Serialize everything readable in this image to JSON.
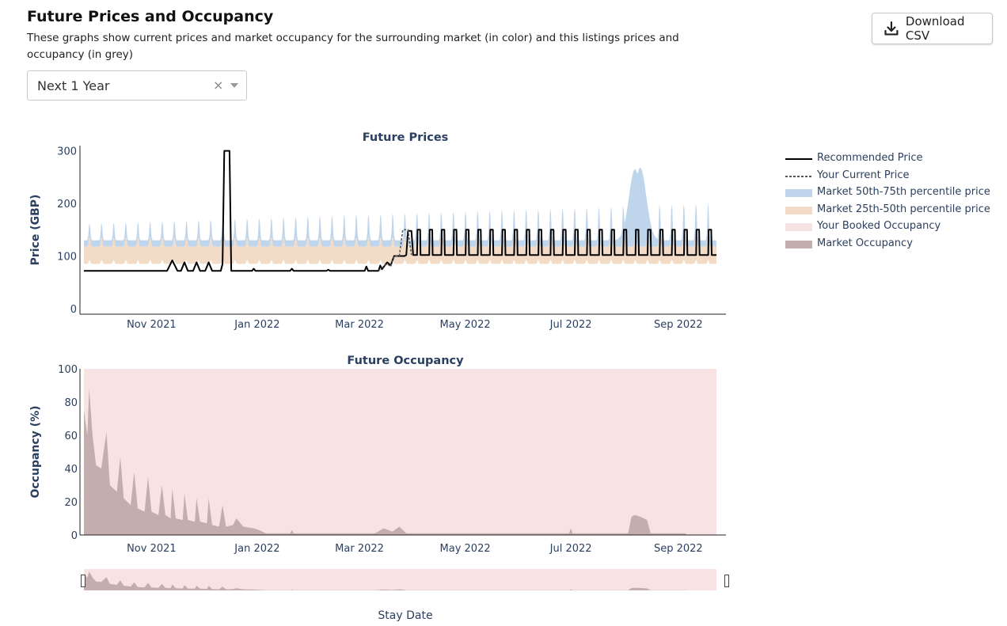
{
  "page": {
    "title": "Future Prices and Occupancy",
    "description": "These graphs show current prices and market occupancy for the surrounding market (in color) and this listings prices and occupancy (in grey)",
    "download_label": "Download CSV",
    "period_select": {
      "value": "Next 1 Year",
      "clear": "×"
    }
  },
  "colors": {
    "band_50_75": "#bfd5ec",
    "band_25_50": "#f3dcc7",
    "booked_occupancy": "#f7e3e4",
    "market_occupancy": "#c3adae",
    "recommended": "#000000",
    "current": "#555555",
    "axis_text": "#2a3f5f"
  },
  "chart_data": [
    {
      "type": "line",
      "title": "Future Prices",
      "ylabel": "Price (GBP)",
      "xlabel": "",
      "x_range": [
        "2021-09-23",
        "2022-09-23"
      ],
      "ylim": [
        0,
        310
      ],
      "y_ticks": [
        0,
        100,
        200,
        300
      ],
      "x_ticks": [
        {
          "date": "2021-11-01",
          "label": "Nov 2021"
        },
        {
          "date": "2022-01-01",
          "label": "Jan 2022"
        },
        {
          "date": "2022-03-01",
          "label": "Mar 2022"
        },
        {
          "date": "2022-05-01",
          "label": "May 2022"
        },
        {
          "date": "2022-07-01",
          "label": "Jul 2022"
        },
        {
          "date": "2022-09-01",
          "label": "Sep 2022"
        }
      ],
      "series": [
        {
          "name": "Recommended Price",
          "style": "solid",
          "points": [
            [
              "2021-09-23",
              72
            ],
            [
              "2021-11-10",
              72
            ],
            [
              "2021-11-13",
              92
            ],
            [
              "2021-11-16",
              72
            ],
            [
              "2021-11-18",
              72
            ],
            [
              "2021-11-20",
              88
            ],
            [
              "2021-11-22",
              72
            ],
            [
              "2021-11-25",
              72
            ],
            [
              "2021-11-27",
              88
            ],
            [
              "2021-11-29",
              72
            ],
            [
              "2021-12-02",
              72
            ],
            [
              "2021-12-04",
              88
            ],
            [
              "2021-12-06",
              72
            ],
            [
              "2021-12-11",
              72
            ],
            [
              "2021-12-12",
              85
            ],
            [
              "2021-12-13",
              300
            ],
            [
              "2021-12-16",
              300
            ],
            [
              "2021-12-17",
              72
            ],
            [
              "2021-12-29",
              72
            ],
            [
              "2021-12-30",
              76
            ],
            [
              "2021-12-31",
              72
            ],
            [
              "2022-01-20",
              72
            ],
            [
              "2022-01-21",
              76
            ],
            [
              "2022-01-22",
              72
            ],
            [
              "2022-02-10",
              72
            ],
            [
              "2022-02-11",
              74
            ],
            [
              "2022-02-12",
              72
            ],
            [
              "2022-03-04",
              72
            ],
            [
              "2022-03-05",
              80
            ],
            [
              "2022-03-06",
              72
            ],
            [
              "2022-03-12",
              72
            ],
            [
              "2022-03-13",
              82
            ],
            [
              "2022-03-14",
              75
            ],
            [
              "2022-03-17",
              88
            ],
            [
              "2022-03-19",
              82
            ],
            [
              "2022-03-21",
              100
            ],
            [
              "2022-03-27",
              100
            ],
            [
              "2022-03-28",
              102
            ],
            [
              "2022-03-29",
              148
            ],
            [
              "2022-03-31",
              148
            ],
            [
              "2022-04-01",
              102
            ]
          ],
          "weekly_pattern": {
            "start": "2022-04-01",
            "end": "2022-09-23",
            "base": 102,
            "peak": 150
          }
        },
        {
          "name": "Your Current Price",
          "style": "dashed",
          "points": [
            [
              "2022-03-12",
              72
            ],
            [
              "2022-03-14",
              78
            ],
            [
              "2022-03-17",
              85
            ],
            [
              "2022-03-19",
              80
            ],
            [
              "2022-03-21",
              100
            ],
            [
              "2022-03-24",
              100
            ],
            [
              "2022-03-26",
              150
            ],
            [
              "2022-03-29",
              150
            ],
            [
              "2022-03-31",
              102
            ]
          ]
        }
      ],
      "bands": [
        {
          "name": "Market 50th-75th percentile price",
          "low_base": 118,
          "base": 130,
          "seasonal_peaks": [
            [
              "2022-08-07",
              265
            ],
            [
              "2022-08-10",
              268
            ]
          ]
        },
        {
          "name": "Market 25th-50th percentile price",
          "low_base": 85,
          "base": 118
        }
      ]
    },
    {
      "type": "area",
      "title": "Future Occupancy",
      "ylabel": "Occupancy (%)",
      "xlabel": "Stay Date",
      "x_range": [
        "2021-09-23",
        "2022-09-23"
      ],
      "ylim": [
        0,
        100
      ],
      "y_ticks": [
        0,
        20,
        40,
        60,
        80,
        100
      ],
      "series": [
        {
          "name": "Your Booked Occupancy",
          "values_pct": "100 across full range"
        },
        {
          "name": "Market Occupancy",
          "points": [
            [
              "2021-09-23",
              75
            ],
            [
              "2021-09-25",
              60
            ],
            [
              "2021-09-26",
              88
            ],
            [
              "2021-09-28",
              60
            ],
            [
              "2021-09-30",
              42
            ],
            [
              "2021-10-03",
              40
            ],
            [
              "2021-10-06",
              62
            ],
            [
              "2021-10-08",
              30
            ],
            [
              "2021-10-12",
              26
            ],
            [
              "2021-10-14",
              47
            ],
            [
              "2021-10-16",
              22
            ],
            [
              "2021-10-20",
              18
            ],
            [
              "2021-10-22",
              38
            ],
            [
              "2021-10-24",
              16
            ],
            [
              "2021-10-28",
              14
            ],
            [
              "2021-10-30",
              35
            ],
            [
              "2021-11-01",
              14
            ],
            [
              "2021-11-05",
              12
            ],
            [
              "2021-11-07",
              30
            ],
            [
              "2021-11-09",
              12
            ],
            [
              "2021-11-12",
              10
            ],
            [
              "2021-11-13",
              28
            ],
            [
              "2021-11-15",
              10
            ],
            [
              "2021-11-19",
              9
            ],
            [
              "2021-11-20",
              25
            ],
            [
              "2021-11-22",
              9
            ],
            [
              "2021-11-26",
              8
            ],
            [
              "2021-11-27",
              22
            ],
            [
              "2021-11-29",
              8
            ],
            [
              "2021-12-03",
              7
            ],
            [
              "2021-12-04",
              22
            ],
            [
              "2021-12-06",
              6
            ],
            [
              "2021-12-10",
              5
            ],
            [
              "2021-12-12",
              18
            ],
            [
              "2021-12-14",
              5
            ],
            [
              "2021-12-18",
              6
            ],
            [
              "2021-12-20",
              10
            ],
            [
              "2021-12-24",
              5
            ],
            [
              "2021-12-30",
              4
            ],
            [
              "2022-01-02",
              3
            ],
            [
              "2022-01-06",
              1
            ],
            [
              "2022-01-20",
              1
            ],
            [
              "2022-01-21",
              3
            ],
            [
              "2022-01-22",
              1
            ],
            [
              "2022-03-10",
              1
            ],
            [
              "2022-03-15",
              4
            ],
            [
              "2022-03-20",
              2
            ],
            [
              "2022-03-24",
              5
            ],
            [
              "2022-03-28",
              1
            ],
            [
              "2022-05-15",
              1
            ],
            [
              "2022-06-30",
              1
            ],
            [
              "2022-07-01",
              4
            ],
            [
              "2022-07-02",
              1
            ],
            [
              "2022-08-03",
              1
            ],
            [
              "2022-08-05",
              11
            ],
            [
              "2022-08-07",
              12
            ],
            [
              "2022-08-10",
              11
            ],
            [
              "2022-08-14",
              9
            ],
            [
              "2022-08-16",
              1
            ],
            [
              "2022-09-05",
              1
            ],
            [
              "2022-09-06",
              0
            ]
          ]
        }
      ]
    }
  ],
  "legend": [
    {
      "label": "Recommended Price",
      "kind": "line-solid"
    },
    {
      "label": "Your Current Price",
      "kind": "line-dashed"
    },
    {
      "label": "Market 50th-75th percentile price",
      "kind": "fill-blue"
    },
    {
      "label": "Market 25th-50th percentile price",
      "kind": "fill-peach"
    },
    {
      "label": "Your Booked Occupancy",
      "kind": "fill-pink"
    },
    {
      "label": "Market Occupancy",
      "kind": "fill-grey"
    }
  ]
}
